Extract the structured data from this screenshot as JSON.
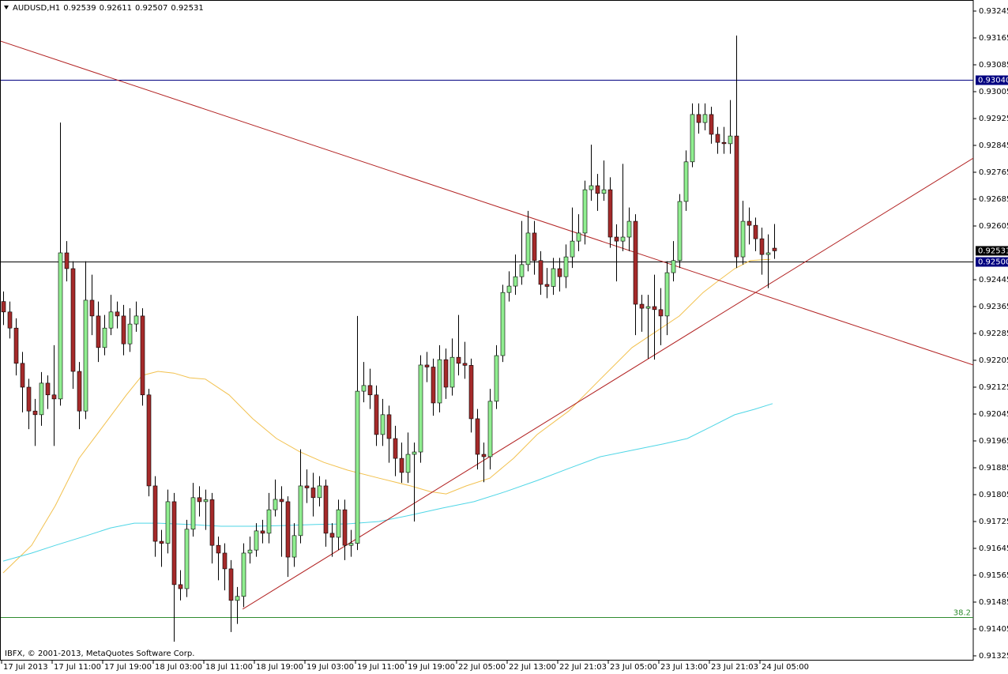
{
  "chart_data": {
    "type": "candlestick",
    "symbol": "AUDUSD,H1",
    "copyright": "IBFX, © 2001-2013, MetaQuotes Software Corp.",
    "up_color": "#90ee90",
    "down_color": "#a52a2a",
    "ylim": [
      0.91325,
      0.93245
    ],
    "yticks": [
      0.93245,
      0.93165,
      0.93085,
      0.93005,
      0.92925,
      0.92845,
      0.92765,
      0.92685,
      0.92605,
      0.92445,
      0.92365,
      0.92285,
      0.92205,
      0.92125,
      0.92045,
      0.91965,
      0.91885,
      0.91805,
      0.91725,
      0.91645,
      0.91565,
      0.91485,
      0.91405,
      0.91325
    ],
    "x_labels": [
      "17 Jul 2013",
      "17 Jul 11:00",
      "17 Jul 19:00",
      "18 Jul 03:00",
      "18 Jul 11:00",
      "18 Jul 19:00",
      "19 Jul 03:00",
      "19 Jul 11:00",
      "19 Jul 19:00",
      "22 Jul 05:00",
      "22 Jul 13:00",
      "22 Jul 21:03",
      "23 Jul 05:00",
      "23 Jul 13:00",
      "23 Jul 21:03",
      "24 Jul 05:00"
    ],
    "open": [
      0.9238,
      0.92349,
      0.92301,
      0.92196,
      0.92125,
      0.92054,
      0.92043,
      0.92137,
      0.92102,
      0.9209,
      0.92525,
      0.92478,
      0.92172,
      0.92054,
      0.92384,
      0.92337,
      0.92243,
      0.92301,
      0.92349,
      0.92337,
      0.92254,
      0.92313,
      0.92337,
      0.92102,
      0.91831,
      0.91666,
      0.9166,
      0.91784,
      0.91537,
      0.91525,
      0.91702,
      0.91796,
      0.91784,
      0.9179,
      0.91654,
      0.91631,
      0.91584,
      0.9149,
      0.91502,
      0.91631,
      0.9164,
      0.91697,
      0.9169,
      0.9176,
      0.91791,
      0.91784,
      0.91619,
      0.91683,
      0.91831,
      0.91825,
      0.91796,
      0.91831,
      0.9169,
      0.91678,
      0.9176,
      0.91654,
      0.9166,
      0.92113,
      0.9213,
      0.92102,
      0.91984,
      0.92043,
      0.91972,
      0.91913,
      0.91871,
      0.91925,
      0.91932,
      0.92191,
      0.92185,
      0.92078,
      0.92207,
      0.92125,
      0.92214,
      0.92196,
      0.9219,
      0.92031,
      0.91925,
      0.91918,
      0.92083,
      0.92219,
      0.92407,
      0.92426,
      0.92454,
      0.9249,
      0.92584,
      0.92502,
      0.92431,
      0.92425,
      0.92478,
      0.92454,
      0.92513,
      0.9256,
      0.92584,
      0.92713,
      0.92725,
      0.92702,
      0.92713,
      0.92572,
      0.9256,
      0.92572,
      0.92619,
      0.92372,
      0.9236,
      0.92365,
      0.92356,
      0.92337,
      0.92466,
      0.92502,
      0.92678,
      0.92796,
      0.92937,
      0.92913,
      0.92937,
      0.92878,
      0.92854,
      0.9285,
      0.92873,
      0.92513,
      0.92619,
      0.92607,
      0.92567,
      0.9252,
      0.92539
    ],
    "high": [
      0.9241,
      0.9238,
      0.9233,
      0.9223,
      0.9215,
      0.9209,
      0.9217,
      0.9216,
      0.9225,
      0.92913,
      0.9256,
      0.925,
      0.922,
      0.925,
      0.9246,
      0.9238,
      0.9234,
      0.924,
      0.9238,
      0.9237,
      0.9236,
      0.9238,
      0.9236,
      0.9212,
      0.9186,
      0.917,
      0.9182,
      0.9181,
      0.9158,
      0.9173,
      0.9184,
      0.9183,
      0.9182,
      0.9181,
      0.9168,
      0.9166,
      0.9161,
      0.9153,
      0.9166,
      0.9168,
      0.9172,
      0.9173,
      0.9181,
      0.9185,
      0.9183,
      0.918,
      0.9172,
      0.9194,
      0.9188,
      0.9187,
      0.9186,
      0.9185,
      0.9172,
      0.9179,
      0.9179,
      0.917,
      0.92337,
      0.922,
      0.9218,
      0.9213,
      0.9209,
      0.9207,
      0.9201,
      0.9196,
      0.9199,
      0.9196,
      0.9222,
      0.9223,
      0.9221,
      0.9225,
      0.9224,
      0.9227,
      0.9234,
      0.9226,
      0.9221,
      0.9206,
      0.9196,
      0.9212,
      0.9225,
      0.9243,
      0.9247,
      0.9252,
      0.9262,
      0.9265,
      0.9262,
      0.9253,
      0.9248,
      0.9251,
      0.9251,
      0.9255,
      0.9266,
      0.9264,
      0.9274,
      0.92847,
      0.9276,
      0.928,
      0.9275,
      0.9261,
      0.9279,
      0.9266,
      0.9264,
      0.924,
      0.924,
      0.9246,
      0.9242,
      0.925,
      0.9256,
      0.927,
      0.9283,
      0.9297,
      0.9297,
      0.9297,
      0.9296,
      0.929,
      0.929,
      0.9298,
      0.93172,
      0.9268,
      0.9266,
      0.9263,
      0.926,
      0.9258,
      0.92611
    ],
    "low": [
      0.9231,
      0.9227,
      0.9216,
      0.9205,
      0.92,
      0.9195,
      0.9201,
      0.9206,
      0.9195,
      0.9207,
      0.9244,
      0.9212,
      0.92,
      0.9203,
      0.9228,
      0.922,
      0.9222,
      0.9228,
      0.923,
      0.9222,
      0.9223,
      0.9229,
      0.9207,
      0.918,
      0.9162,
      0.9159,
      0.9163,
      0.91367,
      0.9149,
      0.915,
      0.9168,
      0.9174,
      0.917,
      0.916,
      0.9155,
      0.9152,
      0.91396,
      0.9142,
      0.9147,
      0.916,
      0.9162,
      0.9166,
      0.9166,
      0.9174,
      0.9162,
      0.9156,
      0.9159,
      0.9166,
      0.9178,
      0.9174,
      0.9177,
      0.9165,
      0.9162,
      0.9164,
      0.9161,
      0.9162,
      0.9164,
      0.9208,
      0.9206,
      0.9195,
      0.9195,
      0.919,
      0.9186,
      0.9184,
      0.9184,
      0.91725,
      0.919,
      0.9214,
      0.9204,
      0.9205,
      0.9209,
      0.921,
      0.9216,
      0.9215,
      0.9199,
      0.9188,
      0.91842,
      0.9188,
      0.9206,
      0.922,
      0.9238,
      0.924,
      0.9243,
      0.9247,
      0.9246,
      0.924,
      0.9239,
      0.924,
      0.9241,
      0.9242,
      0.9248,
      0.9253,
      0.9255,
      0.9268,
      0.9265,
      0.9268,
      0.9254,
      0.9244,
      0.9253,
      0.9253,
      0.9228,
      0.9229,
      0.9221,
      0.92207,
      0.9225,
      0.9228,
      0.9244,
      0.9248,
      0.9265,
      0.9278,
      0.9288,
      0.9289,
      0.9285,
      0.9282,
      0.9282,
      0.9282,
      0.9248,
      0.9249,
      0.9255,
      0.9253,
      0.9246,
      0.9242,
      0.92507
    ],
    "close": [
      0.92349,
      0.92301,
      0.92196,
      0.92125,
      0.92054,
      0.92043,
      0.92137,
      0.92102,
      0.9209,
      0.92525,
      0.92478,
      0.92172,
      0.92054,
      0.92384,
      0.92337,
      0.92243,
      0.92301,
      0.92349,
      0.92337,
      0.92254,
      0.92313,
      0.92337,
      0.92102,
      0.91831,
      0.91666,
      0.9166,
      0.91784,
      0.91537,
      0.91525,
      0.91702,
      0.91796,
      0.91784,
      0.9179,
      0.91654,
      0.91631,
      0.91584,
      0.9149,
      0.91502,
      0.91631,
      0.9164,
      0.91697,
      0.9169,
      0.9176,
      0.91791,
      0.91784,
      0.91619,
      0.91683,
      0.91831,
      0.91825,
      0.91796,
      0.91831,
      0.9169,
      0.91678,
      0.9176,
      0.91654,
      0.9166,
      0.92113,
      0.9213,
      0.92102,
      0.91984,
      0.92043,
      0.91972,
      0.91913,
      0.91871,
      0.91925,
      0.91932,
      0.92191,
      0.92185,
      0.92078,
      0.92207,
      0.92125,
      0.92214,
      0.92196,
      0.9219,
      0.92031,
      0.91925,
      0.91918,
      0.92083,
      0.92219,
      0.92407,
      0.92426,
      0.92454,
      0.9249,
      0.92584,
      0.92502,
      0.92431,
      0.92425,
      0.92478,
      0.92454,
      0.92513,
      0.9256,
      0.92584,
      0.92713,
      0.92725,
      0.92702,
      0.92713,
      0.92572,
      0.9256,
      0.92572,
      0.92619,
      0.92372,
      0.9236,
      0.92365,
      0.92356,
      0.92337,
      0.92466,
      0.92502,
      0.92678,
      0.92796,
      0.92937,
      0.92913,
      0.92937,
      0.92878,
      0.92854,
      0.9285,
      0.92873,
      0.92513,
      0.92619,
      0.92607,
      0.92567,
      0.9252,
      0.92525,
      0.92531
    ],
    "moving_averages": [
      {
        "color": "#f2c14e",
        "x": [
          0,
          4.5,
          8.25,
          12,
          15.75,
          19.5,
          22,
          24.5,
          27,
          29.5,
          32,
          35.75,
          39.5,
          43.25,
          47,
          50.75,
          54.5,
          59.5,
          64.5,
          67.6,
          70.1,
          73.25,
          77,
          80.75,
          84.5,
          89.5,
          94.5,
          99.5,
          103.25,
          107,
          110.75,
          113.25,
          115.75,
          118.25,
          121.4
        ],
        "values": [
          0.91572,
          0.91654,
          0.91772,
          0.91913,
          0.92007,
          0.92102,
          0.9216,
          0.92172,
          0.92167,
          0.92153,
          0.92149,
          0.92102,
          0.92031,
          0.91972,
          0.91932,
          0.91901,
          0.91878,
          0.91854,
          0.91831,
          0.91814,
          0.91807,
          0.91831,
          0.91854,
          0.91913,
          0.91984,
          0.92054,
          0.92149,
          0.92243,
          0.9229,
          0.92337,
          0.92407,
          0.92443,
          0.92478,
          0.92502,
          0.92506
        ]
      },
      {
        "color": "#4fd6e6",
        "x": [
          0,
          4.5,
          8.25,
          13.25,
          17,
          20.75,
          24.5,
          29.5,
          34.5,
          39.5,
          44.5,
          49.5,
          54.5,
          59.5,
          64.5,
          69.5,
          74.5,
          79.5,
          84.5,
          89.5,
          94.5,
          99.5,
          104.5,
          108.25,
          112,
          115.75,
          118.875,
          121.75
        ],
        "values": [
          0.91607,
          0.91631,
          0.91654,
          0.91683,
          0.91706,
          0.9172,
          0.9172,
          0.91716,
          0.91711,
          0.91711,
          0.91713,
          0.91716,
          0.91718,
          0.91725,
          0.91744,
          0.91765,
          0.91784,
          0.91814,
          0.91847,
          0.91883,
          0.91918,
          0.91937,
          0.91956,
          0.91972,
          0.92007,
          0.92043,
          0.92059,
          0.92076
        ]
      }
    ],
    "trendlines": [
      {
        "color": "#b22222",
        "x": [
          -0.5,
          153.5
        ],
        "values": [
          0.93156,
          0.92191
        ]
      },
      {
        "color": "#b22222",
        "x": [
          37.9,
          153.5
        ],
        "values": [
          0.91464,
          0.92807
        ]
      }
    ],
    "levels": [
      {
        "value": 0.9304,
        "label": "0.93040",
        "color": "#000080"
      },
      {
        "value": 0.925,
        "label": "0.92500",
        "color": "#000000",
        "box": "#000080"
      }
    ],
    "fib_level": {
      "value": 0.9144,
      "label": "38.2",
      "color": "#2e8b2e"
    }
  }
}
